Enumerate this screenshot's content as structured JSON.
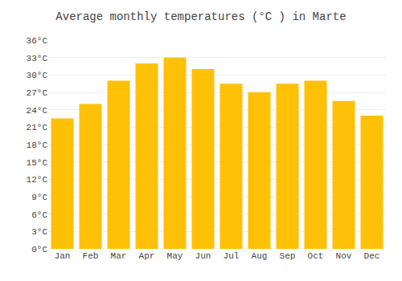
{
  "chart_data": {
    "type": "bar",
    "title": "Average monthly temperatures (°C ) in Marte",
    "categories": [
      "Jan",
      "Feb",
      "Mar",
      "Apr",
      "May",
      "Jun",
      "Jul",
      "Aug",
      "Sep",
      "Oct",
      "Nov",
      "Dec"
    ],
    "values": [
      22.5,
      25.0,
      29.0,
      32.0,
      33.0,
      31.0,
      28.5,
      27.0,
      28.5,
      29.0,
      25.5,
      23.0
    ],
    "color": "#FFC107",
    "ylim": [
      0,
      36
    ],
    "yticks": [
      {
        "value": 0,
        "label": "0°C"
      },
      {
        "value": 3,
        "label": "3°C"
      },
      {
        "value": 6,
        "label": "6°C"
      },
      {
        "value": 9,
        "label": "9°C"
      },
      {
        "value": 12,
        "label": "12°C"
      },
      {
        "value": 15,
        "label": "15°C"
      },
      {
        "value": 18,
        "label": "18°C"
      },
      {
        "value": 21,
        "label": "21°C"
      },
      {
        "value": 24,
        "label": "24°C"
      },
      {
        "value": 27,
        "label": "27°C"
      },
      {
        "value": 30,
        "label": "30°C"
      },
      {
        "value": 33,
        "label": "33°C"
      },
      {
        "value": 36,
        "label": "36°C"
      }
    ],
    "grid": true
  }
}
